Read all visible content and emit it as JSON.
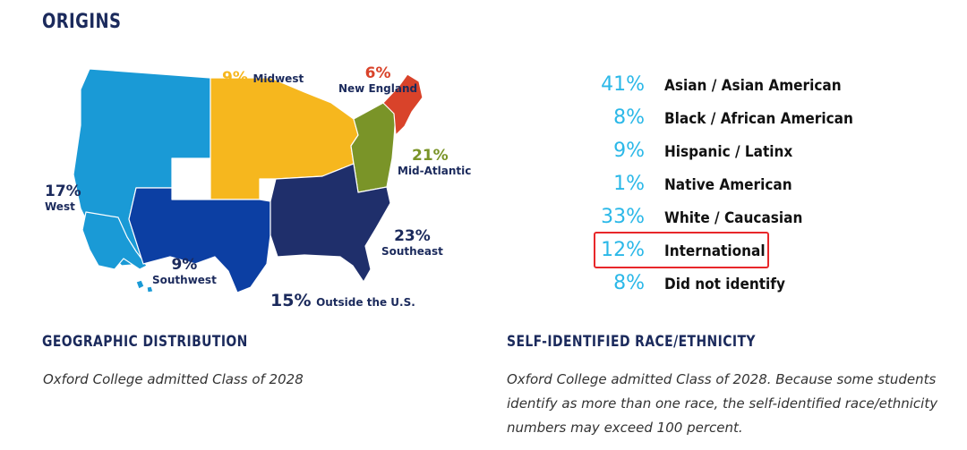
{
  "page": {
    "title": "ORIGINS",
    "geo_title": "GEOGRAPHIC DISTRIBUTION",
    "geo_caption": "Oxford College admitted Class of 2028",
    "race_title": "SELF-IDENTIFIED RACE/ETHNICITY",
    "race_caption": "Oxford College admitted Class of 2028. Because some students identify as more than one race, the self-identified race/ethnicity numbers may exceed 100 percent."
  },
  "regions": [
    {
      "id": "west",
      "pct": "17%",
      "name": "West",
      "color": "#1a9ad6"
    },
    {
      "id": "midwest",
      "pct": "9%",
      "name": "Midwest",
      "color": "#f6b71e"
    },
    {
      "id": "new-england",
      "pct": "6%",
      "name": "New England",
      "color": "#d9432a"
    },
    {
      "id": "mid-atlantic",
      "pct": "21%",
      "name": "Mid-Atlantic",
      "color": "#7a9428"
    },
    {
      "id": "southeast",
      "pct": "23%",
      "name": "Southeast",
      "color": "#1f2f6b"
    },
    {
      "id": "southwest",
      "pct": "9%",
      "name": "Southwest",
      "color": "#0c3fa3"
    },
    {
      "id": "outside",
      "pct": "15%",
      "name": "Outside the U.S."
    }
  ],
  "race": [
    {
      "pct": "41%",
      "label": "Asian / Asian American"
    },
    {
      "pct": "8%",
      "label": "Black / African American"
    },
    {
      "pct": "9%",
      "label": "Hispanic / Latinx"
    },
    {
      "pct": "1%",
      "label": "Native American"
    },
    {
      "pct": "33%",
      "label": "White / Caucasian"
    },
    {
      "pct": "12%",
      "label": "International",
      "highlighted": true
    },
    {
      "pct": "8%",
      "label": "Did not identify"
    }
  ],
  "colors": {
    "heading": "#1b2a5c",
    "race_pct": "#2bb8e8",
    "highlight": "#e8272a"
  }
}
